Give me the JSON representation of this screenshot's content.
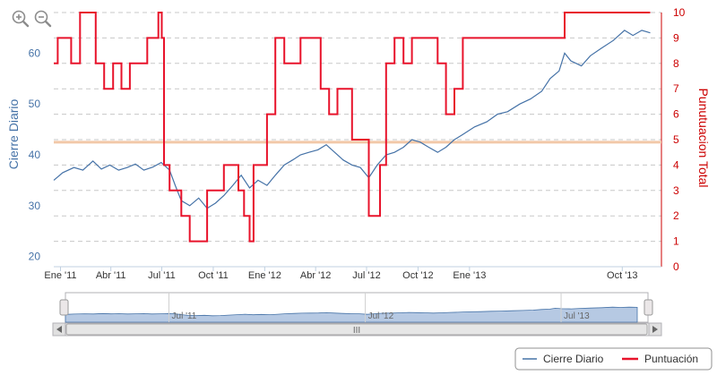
{
  "chart_data": {
    "type": "line",
    "y_axes": {
      "left": {
        "title": "Cierre Diario",
        "ticks": [
          "20",
          "30",
          "40",
          "50",
          "60"
        ],
        "range": [
          18,
          68
        ]
      },
      "right": {
        "title": "Punutuacion Total",
        "ticks": [
          "0",
          "1",
          "2",
          "3",
          "4",
          "5",
          "6",
          "7",
          "8",
          "9",
          "10"
        ],
        "range": [
          0,
          10
        ]
      }
    },
    "x_axis": {
      "ticks": [
        "Ene '11",
        "Abr '11",
        "Jul '11",
        "Oct '11",
        "Ene '12",
        "Abr '12",
        "Jul '12",
        "Oct '12",
        "Ene '13",
        "Oct '13"
      ],
      "range": [
        "2010-12-20",
        "2013-12-10"
      ]
    },
    "plot_band_value": 42.5,
    "series": [
      {
        "name": "Cierre Diario",
        "color": "#4572a7",
        "axis": "left",
        "points": [
          [
            "2010-12-20",
            35.0
          ],
          [
            "2011-01-05",
            36.5
          ],
          [
            "2011-01-25",
            37.5
          ],
          [
            "2011-02-10",
            37.0
          ],
          [
            "2011-02-28",
            38.8
          ],
          [
            "2011-03-15",
            37.2
          ],
          [
            "2011-03-30",
            38.0
          ],
          [
            "2011-04-15",
            37.0
          ],
          [
            "2011-04-30",
            37.5
          ],
          [
            "2011-05-15",
            38.2
          ],
          [
            "2011-05-30",
            37.0
          ],
          [
            "2011-06-15",
            37.6
          ],
          [
            "2011-06-30",
            38.5
          ],
          [
            "2011-07-15",
            37.0
          ],
          [
            "2011-07-25",
            34.0
          ],
          [
            "2011-08-05",
            31.0
          ],
          [
            "2011-08-20",
            30.0
          ],
          [
            "2011-09-05",
            31.5
          ],
          [
            "2011-09-20",
            29.5
          ],
          [
            "2011-10-05",
            30.5
          ],
          [
            "2011-10-20",
            32.0
          ],
          [
            "2011-11-05",
            34.0
          ],
          [
            "2011-11-20",
            36.0
          ],
          [
            "2011-12-05",
            33.5
          ],
          [
            "2011-12-20",
            35.0
          ],
          [
            "2012-01-05",
            34.0
          ],
          [
            "2012-01-20",
            36.0
          ],
          [
            "2012-02-05",
            38.0
          ],
          [
            "2012-02-20",
            39.0
          ],
          [
            "2012-03-05",
            40.0
          ],
          [
            "2012-03-20",
            40.5
          ],
          [
            "2012-04-05",
            41.0
          ],
          [
            "2012-04-20",
            42.0
          ],
          [
            "2012-05-05",
            40.5
          ],
          [
            "2012-05-20",
            39.0
          ],
          [
            "2012-06-05",
            38.0
          ],
          [
            "2012-06-20",
            37.5
          ],
          [
            "2012-07-05",
            35.5
          ],
          [
            "2012-07-20",
            38.0
          ],
          [
            "2012-08-05",
            40.0
          ],
          [
            "2012-08-20",
            40.5
          ],
          [
            "2012-09-05",
            41.5
          ],
          [
            "2012-09-20",
            43.0
          ],
          [
            "2012-10-05",
            42.5
          ],
          [
            "2012-10-20",
            41.5
          ],
          [
            "2012-11-05",
            40.5
          ],
          [
            "2012-11-20",
            41.5
          ],
          [
            "2012-12-05",
            43.0
          ],
          [
            "2012-12-20",
            44.0
          ],
          [
            "2013-01-10",
            45.5
          ],
          [
            "2013-02-01",
            46.5
          ],
          [
            "2013-02-20",
            48.0
          ],
          [
            "2013-03-10",
            48.5
          ],
          [
            "2013-04-01",
            50.0
          ],
          [
            "2013-04-20",
            51.0
          ],
          [
            "2013-05-10",
            52.5
          ],
          [
            "2013-05-25",
            55.0
          ],
          [
            "2013-06-10",
            56.5
          ],
          [
            "2013-06-20",
            60.0
          ],
          [
            "2013-07-01",
            58.5
          ],
          [
            "2013-07-20",
            57.5
          ],
          [
            "2013-08-05",
            59.5
          ],
          [
            "2013-08-25",
            61.0
          ],
          [
            "2013-09-15",
            62.5
          ],
          [
            "2013-10-05",
            64.5
          ],
          [
            "2013-10-20",
            63.5
          ],
          [
            "2013-11-05",
            64.5
          ],
          [
            "2013-11-20",
            64.0
          ]
        ]
      },
      {
        "name": "Puntuación",
        "color": "#e8132b",
        "axis": "right",
        "points": [
          [
            "2010-12-20",
            8
          ],
          [
            "2010-12-27",
            9
          ],
          [
            "2011-01-20",
            8
          ],
          [
            "2011-02-05",
            10
          ],
          [
            "2011-03-05",
            8
          ],
          [
            "2011-03-20",
            7
          ],
          [
            "2011-04-05",
            8
          ],
          [
            "2011-04-20",
            7
          ],
          [
            "2011-05-05",
            8
          ],
          [
            "2011-06-05",
            9
          ],
          [
            "2011-06-25",
            10
          ],
          [
            "2011-07-01",
            9
          ],
          [
            "2011-07-05",
            4
          ],
          [
            "2011-07-15",
            3
          ],
          [
            "2011-08-05",
            2
          ],
          [
            "2011-08-20",
            1
          ],
          [
            "2011-09-20",
            3
          ],
          [
            "2011-10-20",
            4
          ],
          [
            "2011-11-15",
            3
          ],
          [
            "2011-11-25",
            2
          ],
          [
            "2011-12-05",
            1
          ],
          [
            "2011-12-12",
            4
          ],
          [
            "2012-01-05",
            6
          ],
          [
            "2012-01-20",
            9
          ],
          [
            "2012-02-05",
            8
          ],
          [
            "2012-03-05",
            9
          ],
          [
            "2012-04-10",
            7
          ],
          [
            "2012-04-25",
            6
          ],
          [
            "2012-05-10",
            7
          ],
          [
            "2012-06-05",
            5
          ],
          [
            "2012-06-20",
            5
          ],
          [
            "2012-07-05",
            2
          ],
          [
            "2012-07-25",
            4
          ],
          [
            "2012-08-05",
            8
          ],
          [
            "2012-08-20",
            9
          ],
          [
            "2012-09-05",
            8
          ],
          [
            "2012-09-20",
            9
          ],
          [
            "2012-11-05",
            8
          ],
          [
            "2012-11-20",
            6
          ],
          [
            "2012-12-05",
            7
          ],
          [
            "2012-12-20",
            9
          ],
          [
            "2013-01-20",
            9
          ],
          [
            "2013-06-20",
            10
          ],
          [
            "2013-11-20",
            10
          ]
        ]
      }
    ],
    "navigator": {
      "labels": [
        "Jul '11",
        "Jul '12",
        "Jul '13"
      ],
      "scrollbar_grip": "III"
    },
    "legend": [
      "Cierre Diario",
      "Puntuación"
    ],
    "band_color": "#f2c8a8",
    "grid": true
  }
}
